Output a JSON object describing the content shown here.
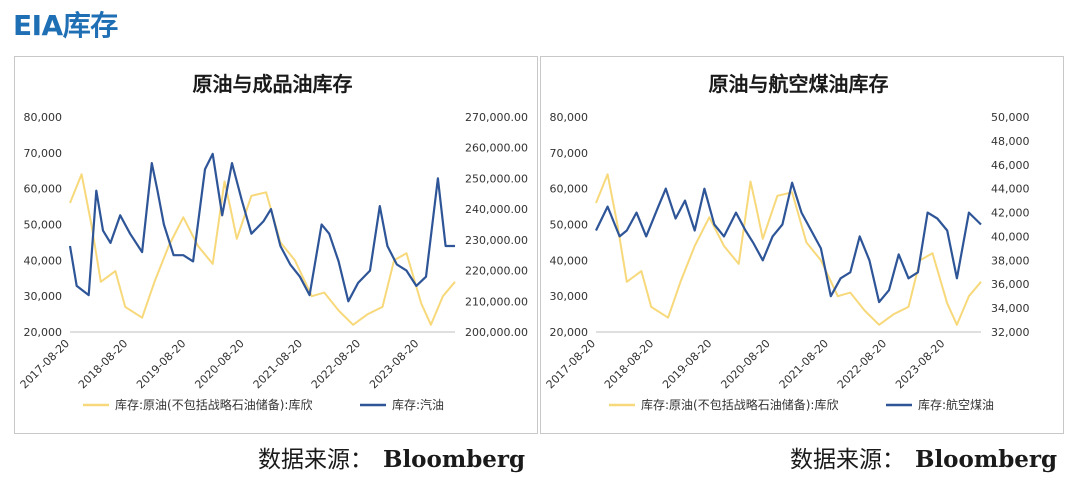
{
  "header": {
    "title": "EIA库存"
  },
  "source": {
    "label": "数据来源：",
    "name": "Bloomberg"
  },
  "colors": {
    "primary_series": "#2e5597",
    "secondary_series": "#f7d97c",
    "title_accent": "#1f6fb5"
  },
  "chart_data": [
    {
      "type": "line",
      "title": "原油与成品油库存",
      "x_ticks": [
        "2017-08-20",
        "2018-08-20",
        "2019-08-20",
        "2020-08-20",
        "2021-08-20",
        "2022-08-20",
        "2023-08-20"
      ],
      "x_range": [
        "2017-08-20",
        "2024-03-31"
      ],
      "y_left": {
        "min": 20000,
        "max": 80000,
        "ticks": [
          "20,000",
          "30,000",
          "40,000",
          "50,000",
          "60,000",
          "70,000",
          "80,000"
        ]
      },
      "y_right": {
        "min": 200000,
        "max": 270000,
        "ticks": [
          "200,000.00",
          "210,000.00",
          "220,000.00",
          "230,000.00",
          "240,000.00",
          "250,000.00",
          "260,000.00",
          "270,000.00"
        ]
      },
      "legend_position": "bottom",
      "grid": false,
      "series": [
        {
          "name": "库存:原油(不包括战略石油储备):库欣",
          "axis": "left",
          "color": "#f7d97c",
          "x": [
            "2017-08-20",
            "2017-11-01",
            "2018-01-01",
            "2018-03-01",
            "2018-06-01",
            "2018-08-01",
            "2018-11-15",
            "2019-02-01",
            "2019-05-01",
            "2019-08-01",
            "2019-11-01",
            "2020-02-01",
            "2020-04-15",
            "2020-05-20",
            "2020-07-01",
            "2020-10-01",
            "2021-01-01",
            "2021-04-01",
            "2021-07-01",
            "2021-10-15",
            "2022-01-01",
            "2022-04-01",
            "2022-07-01",
            "2022-10-01",
            "2023-01-01",
            "2023-03-15",
            "2023-06-01",
            "2023-09-01",
            "2023-11-01",
            "2024-01-15",
            "2024-03-31"
          ],
          "y": [
            56000,
            64000,
            50000,
            34000,
            37000,
            27000,
            24000,
            34000,
            44000,
            52000,
            44000,
            39000,
            62000,
            55000,
            46000,
            58000,
            59000,
            45000,
            40000,
            30000,
            31000,
            26000,
            22000,
            25000,
            27000,
            40000,
            42000,
            28000,
            22000,
            30000,
            34000
          ]
        },
        {
          "name": "库存:汽油",
          "axis": "right",
          "color": "#2e5597",
          "x": [
            "2017-08-20",
            "2017-10-01",
            "2017-12-15",
            "2018-02-01",
            "2018-03-15",
            "2018-05-01",
            "2018-07-01",
            "2018-09-01",
            "2018-11-15",
            "2019-01-15",
            "2019-02-20",
            "2019-04-01",
            "2019-06-01",
            "2019-08-01",
            "2019-10-01",
            "2019-12-15",
            "2020-02-01",
            "2020-04-01",
            "2020-06-01",
            "2020-08-01",
            "2020-10-01",
            "2020-12-15",
            "2021-02-01",
            "2021-04-01",
            "2021-06-01",
            "2021-08-01",
            "2021-10-01",
            "2021-12-15",
            "2022-02-01",
            "2022-04-01",
            "2022-06-01",
            "2022-08-01",
            "2022-10-15",
            "2022-12-15",
            "2023-02-01",
            "2023-04-01",
            "2023-06-01",
            "2023-08-01",
            "2023-10-01",
            "2023-12-15",
            "2024-02-01",
            "2024-03-31"
          ],
          "y": [
            228000,
            215000,
            212000,
            246000,
            233000,
            229000,
            238000,
            232000,
            226000,
            255000,
            246000,
            235000,
            225000,
            225000,
            223000,
            253000,
            258000,
            238000,
            255000,
            243000,
            232000,
            236000,
            240000,
            228000,
            222000,
            218000,
            212000,
            235000,
            232000,
            223000,
            210000,
            216000,
            220000,
            241000,
            228000,
            222000,
            220000,
            215000,
            218000,
            250000,
            228000,
            228000
          ]
        }
      ]
    },
    {
      "type": "line",
      "title": "原油与航空煤油库存",
      "x_ticks": [
        "2017-08-20",
        "2018-08-20",
        "2019-08-20",
        "2020-08-20",
        "2021-08-20",
        "2022-08-20",
        "2023-08-20"
      ],
      "x_range": [
        "2017-08-20",
        "2024-03-31"
      ],
      "y_left": {
        "min": 20000,
        "max": 80000,
        "ticks": [
          "20,000",
          "30,000",
          "40,000",
          "50,000",
          "60,000",
          "70,000",
          "80,000"
        ]
      },
      "y_right": {
        "min": 32000,
        "max": 50000,
        "ticks": [
          "32,000",
          "34,000",
          "36,000",
          "38,000",
          "40,000",
          "42,000",
          "44,000",
          "46,000",
          "48,000",
          "50,000"
        ]
      },
      "legend_position": "bottom",
      "grid": false,
      "series": [
        {
          "name": "库存:原油(不包括战略石油储备):库欣",
          "axis": "left",
          "color": "#f7d97c",
          "x": [
            "2017-08-20",
            "2017-11-01",
            "2018-01-01",
            "2018-03-01",
            "2018-06-01",
            "2018-08-01",
            "2018-11-15",
            "2019-02-01",
            "2019-05-01",
            "2019-08-01",
            "2019-11-01",
            "2020-02-01",
            "2020-04-15",
            "2020-05-20",
            "2020-07-01",
            "2020-10-01",
            "2021-01-01",
            "2021-04-01",
            "2021-07-01",
            "2021-10-15",
            "2022-01-01",
            "2022-04-01",
            "2022-07-01",
            "2022-10-01",
            "2023-01-01",
            "2023-03-15",
            "2023-06-01",
            "2023-09-01",
            "2023-11-01",
            "2024-01-15",
            "2024-03-31"
          ],
          "y": [
            56000,
            64000,
            50000,
            34000,
            37000,
            27000,
            24000,
            34000,
            44000,
            52000,
            44000,
            39000,
            62000,
            55000,
            46000,
            58000,
            59000,
            45000,
            40000,
            30000,
            31000,
            26000,
            22000,
            25000,
            27000,
            40000,
            42000,
            28000,
            22000,
            30000,
            34000
          ]
        },
        {
          "name": "库存:航空煤油",
          "axis": "right",
          "color": "#2e5597",
          "x": [
            "2017-08-20",
            "2017-11-01",
            "2018-01-15",
            "2018-03-01",
            "2018-05-01",
            "2018-07-01",
            "2018-09-15",
            "2018-11-01",
            "2019-01-01",
            "2019-03-01",
            "2019-05-01",
            "2019-07-01",
            "2019-09-01",
            "2019-11-01",
            "2020-01-15",
            "2020-03-15",
            "2020-05-01",
            "2020-07-01",
            "2020-09-01",
            "2020-11-01",
            "2021-01-01",
            "2021-03-01",
            "2021-05-01",
            "2021-07-01",
            "2021-09-01",
            "2021-11-01",
            "2022-01-01",
            "2022-03-01",
            "2022-05-01",
            "2022-07-01",
            "2022-09-01",
            "2022-11-01",
            "2023-01-01",
            "2023-03-01",
            "2023-05-01",
            "2023-07-01",
            "2023-09-01",
            "2023-11-01",
            "2024-01-15",
            "2024-03-31"
          ],
          "y": [
            40500,
            42500,
            40000,
            40500,
            42000,
            40000,
            42500,
            44000,
            41500,
            43000,
            40500,
            44000,
            41000,
            40000,
            42000,
            40500,
            39500,
            38000,
            40000,
            41000,
            44500,
            42000,
            40500,
            39000,
            35000,
            36500,
            37000,
            40000,
            38000,
            34500,
            35500,
            38500,
            36500,
            37000,
            42000,
            41500,
            40500,
            36500,
            42000,
            41000
          ]
        }
      ]
    }
  ]
}
